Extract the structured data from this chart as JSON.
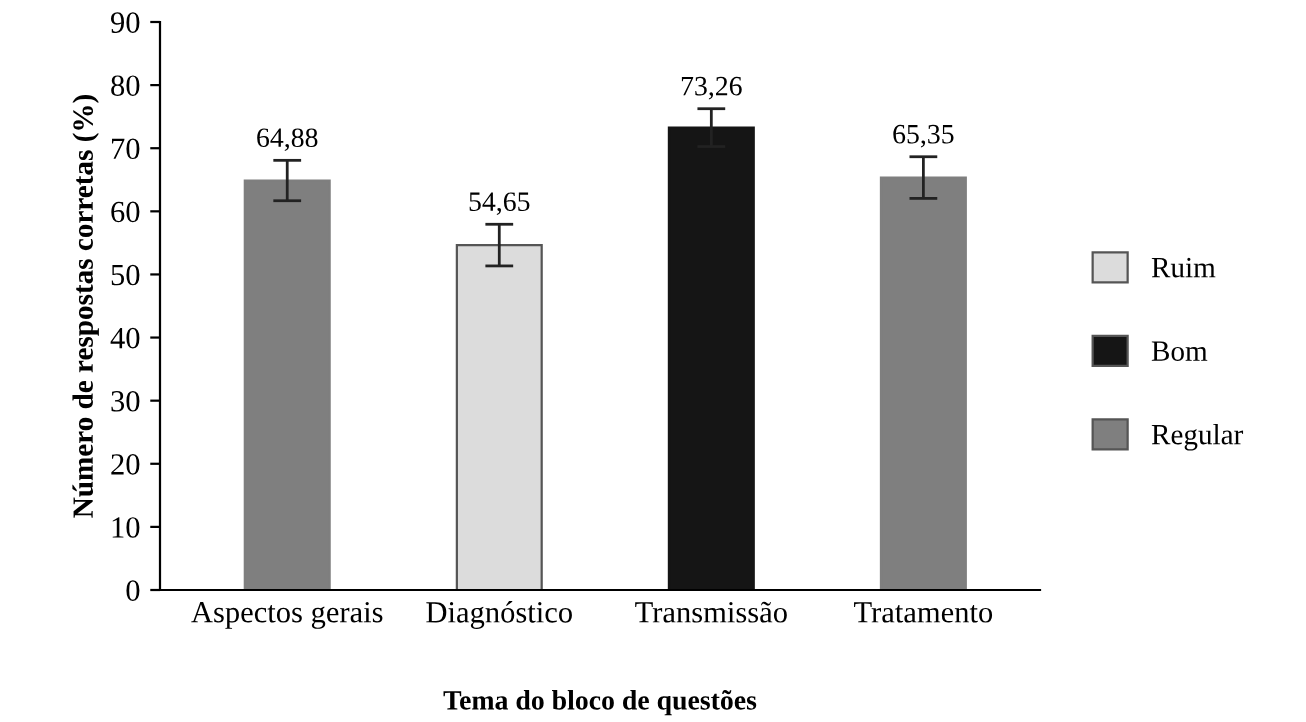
{
  "chart_data": {
    "type": "bar",
    "xlabel": "Tema do bloco de questões",
    "ylabel": "Número de respostas corretas (%)",
    "categories": [
      "Aspectos gerais",
      "Diagnóstico",
      "Transmissão",
      "Tratamento"
    ],
    "series": [
      {
        "name": "Ruim",
        "color": "#dcdcdc",
        "values": [
          null,
          54.65,
          null,
          null
        ],
        "errors": [
          null,
          3.3,
          null,
          null
        ],
        "value_labels": [
          null,
          "54,65",
          null,
          null
        ]
      },
      {
        "name": "Bom",
        "color": "#151515",
        "values": [
          null,
          null,
          73.26,
          null
        ],
        "errors": [
          null,
          null,
          3,
          null
        ],
        "value_labels": [
          null,
          null,
          "73,26",
          null
        ]
      },
      {
        "name": "Regular",
        "color": "#7f7f7f",
        "values": [
          64.88,
          null,
          null,
          65.35
        ],
        "errors": [
          3.2,
          null,
          null,
          3.3
        ],
        "value_labels": [
          "64,88",
          null,
          null,
          "65,35"
        ]
      }
    ],
    "ylim": [
      0,
      90
    ],
    "yticks": [
      0,
      10,
      20,
      30,
      40,
      50,
      60,
      70,
      80,
      90
    ],
    "legend": "right",
    "grid": false
  }
}
